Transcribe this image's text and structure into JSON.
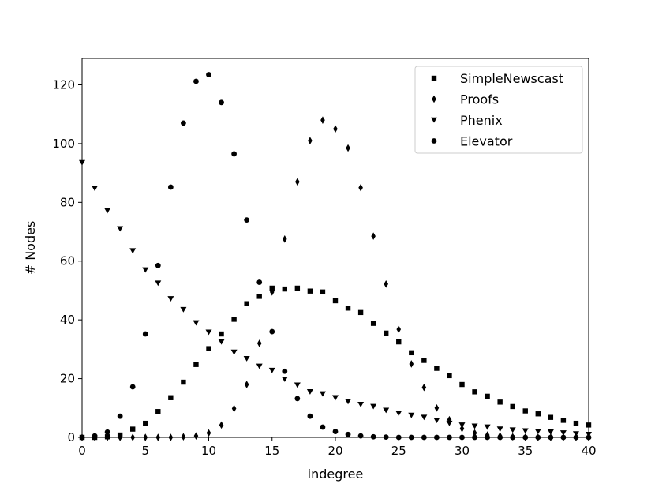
{
  "chart_data": {
    "type": "scatter",
    "title": "",
    "xlabel": "indegree",
    "ylabel": "# Nodes",
    "xlim": [
      0,
      40
    ],
    "ylim": [
      0,
      129
    ],
    "xticks": [
      0,
      5,
      10,
      15,
      20,
      25,
      30,
      35,
      40
    ],
    "yticks": [
      0,
      20,
      40,
      60,
      80,
      100,
      120
    ],
    "grid": false,
    "legend_position": "top-right",
    "series": [
      {
        "name": "SimpleNewscast",
        "marker": "square",
        "color": "#000000",
        "x": [
          0,
          1,
          2,
          3,
          4,
          5,
          6,
          7,
          8,
          9,
          10,
          11,
          12,
          13,
          14,
          15,
          16,
          17,
          18,
          19,
          20,
          21,
          22,
          23,
          24,
          25,
          26,
          27,
          28,
          29,
          30,
          31,
          32,
          33,
          34,
          35,
          36,
          37,
          38,
          39,
          40
        ],
        "y": [
          0,
          0,
          0.2,
          0.8,
          2.8,
          4.8,
          8.8,
          13.5,
          18.8,
          24.8,
          30.2,
          35.2,
          40.2,
          45.5,
          48.0,
          50.8,
          50.5,
          50.8,
          49.8,
          49.5,
          46.5,
          44.0,
          42.5,
          38.8,
          35.5,
          32.5,
          28.8,
          26.2,
          23.5,
          21.0,
          18.0,
          15.5,
          14.0,
          12.0,
          10.5,
          9.0,
          8.0,
          6.8,
          5.8,
          4.8,
          4.2
        ]
      },
      {
        "name": "Proofs",
        "marker": "diamond",
        "color": "#000000",
        "x": [
          0,
          1,
          2,
          3,
          4,
          5,
          6,
          7,
          8,
          9,
          10,
          11,
          12,
          13,
          14,
          15,
          16,
          17,
          18,
          19,
          20,
          21,
          22,
          23,
          24,
          25,
          26,
          27,
          28,
          29,
          30,
          31,
          32,
          33,
          34,
          35,
          36,
          37,
          38,
          39,
          40
        ],
        "y": [
          0,
          0,
          0,
          0,
          0,
          0,
          0,
          0,
          0.2,
          0.5,
          1.5,
          4.2,
          9.8,
          18.0,
          32.0,
          49.5,
          67.5,
          87.0,
          101.0,
          108.0,
          105.0,
          98.5,
          85.0,
          68.5,
          52.2,
          36.8,
          25.0,
          17.0,
          10.0,
          6.0,
          3.0,
          1.5,
          0.8,
          0.5,
          0.2,
          0.1,
          0,
          0,
          0,
          0,
          0
        ]
      },
      {
        "name": "Phenix",
        "marker": "triangle-down",
        "color": "#000000",
        "x": [
          0,
          1,
          2,
          3,
          4,
          5,
          6,
          7,
          8,
          9,
          10,
          11,
          12,
          13,
          14,
          15,
          16,
          17,
          18,
          19,
          20,
          21,
          22,
          23,
          24,
          25,
          26,
          27,
          28,
          29,
          30,
          31,
          32,
          33,
          34,
          35,
          36,
          37,
          38,
          39,
          40
        ],
        "y": [
          93.5,
          84.8,
          77.2,
          71.0,
          63.5,
          57.0,
          52.5,
          47.2,
          43.5,
          39.0,
          35.8,
          32.5,
          29.0,
          26.8,
          24.2,
          22.8,
          19.8,
          17.8,
          15.5,
          14.8,
          13.5,
          12.2,
          11.2,
          10.5,
          9.2,
          8.2,
          7.5,
          6.8,
          5.8,
          4.8,
          4.2,
          3.8,
          3.5,
          2.8,
          2.5,
          2.2,
          2.0,
          1.8,
          1.5,
          1.2,
          1.0
        ]
      },
      {
        "name": "Elevator",
        "marker": "circle",
        "color": "#000000",
        "x": [
          0,
          1,
          2,
          3,
          4,
          5,
          6,
          7,
          8,
          9,
          10,
          11,
          12,
          13,
          14,
          15,
          16,
          17,
          18,
          19,
          20,
          21,
          22,
          23,
          24,
          25,
          26,
          27,
          28,
          29,
          30,
          31,
          32,
          33,
          34,
          35,
          36,
          37,
          38,
          39,
          40
        ],
        "y": [
          0,
          0.5,
          1.8,
          7.2,
          17.2,
          35.2,
          58.5,
          85.2,
          107.0,
          121.2,
          123.5,
          114.0,
          96.5,
          74.0,
          52.8,
          36.0,
          22.5,
          13.2,
          7.2,
          3.5,
          2.0,
          1.0,
          0.5,
          0.2,
          0.1,
          0,
          0,
          0,
          0,
          0,
          0,
          0,
          0,
          0,
          0,
          0,
          0,
          0,
          0,
          0,
          0
        ]
      }
    ]
  }
}
